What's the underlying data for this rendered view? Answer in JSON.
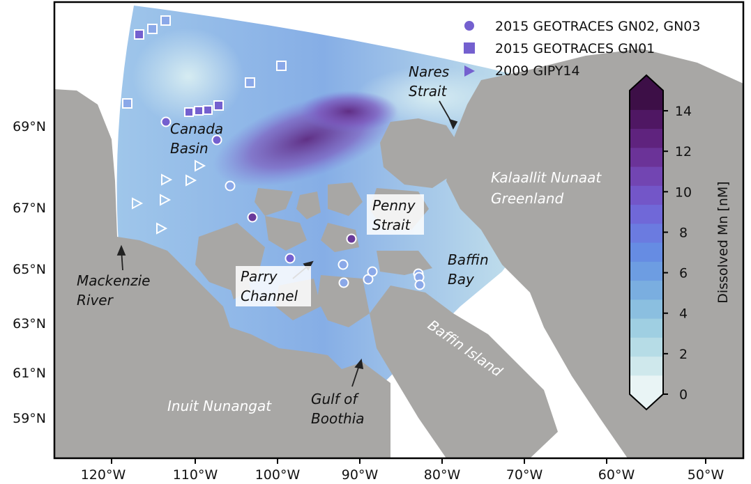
{
  "map": {
    "y_ticks": [
      "69°N",
      "67°N",
      "65°N",
      "63°N",
      "61°N",
      "59°N"
    ],
    "x_ticks": [
      "120°W",
      "110°W",
      "100°W",
      "90°W",
      "80°W",
      "70°W",
      "60°W",
      "50°W"
    ],
    "colors": {
      "land": "#a8a7a5",
      "frame": "#000000",
      "ocean_light": "#d2eaf0",
      "ocean_mid": "#6b9fe6",
      "ocean_dark": "#5d2a7e",
      "marker": "#7460cf"
    }
  },
  "legend": {
    "entries": [
      {
        "symbol": "circle",
        "label": "2015 GEOTRACES GN02, GN03"
      },
      {
        "symbol": "square",
        "label": "2015 GEOTRACES GN01"
      },
      {
        "symbol": "triangle",
        "label": "2009 GIPY14"
      }
    ]
  },
  "colorbar": {
    "label": "Dissolved Mn [nM]",
    "min": 0,
    "max": 15,
    "ticks": [
      "0",
      "2",
      "4",
      "6",
      "8",
      "10",
      "12",
      "14"
    ],
    "colors": [
      "#e9f4f5",
      "#cfe8ec",
      "#b6dce6",
      "#9fcfe2",
      "#8bbfe0",
      "#7aaee0",
      "#6d9de2",
      "#668ce3",
      "#6b7be0",
      "#7068d8",
      "#7356c8",
      "#7245b2",
      "#6b3398",
      "#5f237e",
      "#4f1763",
      "#3d0f47"
    ]
  },
  "labels": [
    {
      "text": "Canada\nBasin",
      "style": "dark"
    },
    {
      "text": "Nares\nStrait",
      "style": "dark"
    },
    {
      "text": "Kalaallit Nunaat\nGreenland",
      "style": "white"
    },
    {
      "text": "Penny\nStrait",
      "style": "boxed"
    },
    {
      "text": "Baffin\nBay",
      "style": "dark"
    },
    {
      "text": "Parry\nChannel",
      "style": "boxed"
    },
    {
      "text": "Mackenzie\nRiver",
      "style": "dark"
    },
    {
      "text": "Baffin Island",
      "style": "white-rotated"
    },
    {
      "text": "Inuit Nunangat",
      "style": "white"
    },
    {
      "text": "Gulf of\nBoothia",
      "style": "dark"
    }
  ]
}
